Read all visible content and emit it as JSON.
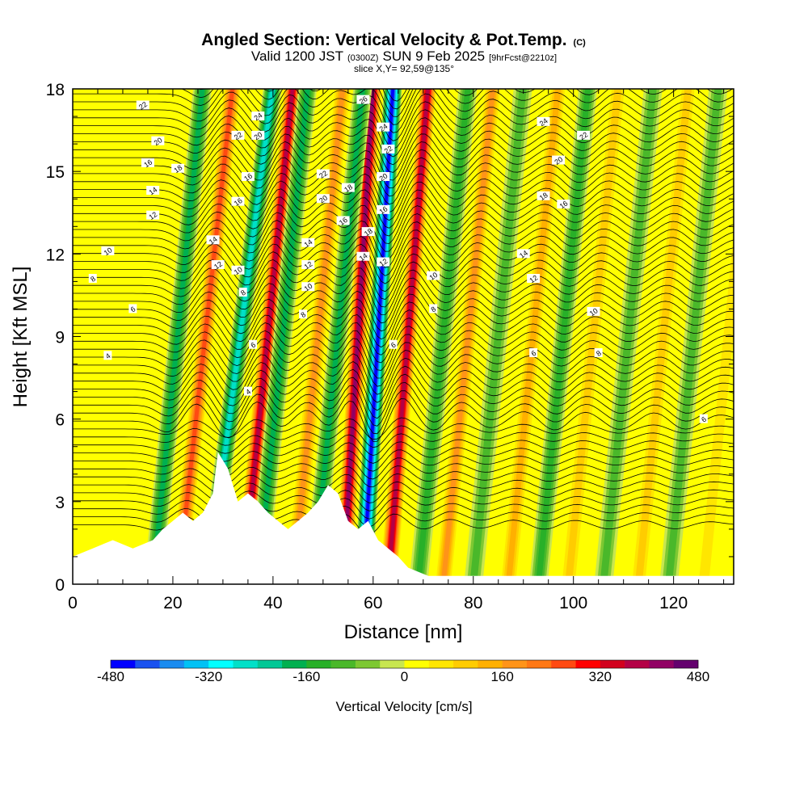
{
  "header": {
    "title_main": "Angled Section: Vertical Velocity & Pot.Temp.",
    "title_mark": "(C)",
    "subtitle_a": "Valid 1200 JST",
    "subtitle_b": "(0300Z)",
    "subtitle_c": "SUN 9 Feb 2025",
    "subtitle_d": "[9hrFcst@2210z]",
    "slice": "slice X,Y= 92,59@135°"
  },
  "chart_data": {
    "type": "heatmap",
    "xlabel": "Distance [nm]",
    "ylabel": "Height [Kft MSL]",
    "xlim": [
      0,
      132
    ],
    "ylim": [
      0,
      18
    ],
    "xticks": [
      0,
      20,
      40,
      60,
      80,
      100,
      120
    ],
    "yticks": [
      0,
      3,
      6,
      9,
      12,
      15,
      18
    ],
    "colorbar": {
      "label": "Vertical Velocity [cm/s]",
      "min": -480,
      "max": 480,
      "step": 40,
      "ticks": [
        -480,
        -320,
        -160,
        0,
        160,
        320,
        480
      ],
      "colors": [
        "#0000ff",
        "#1a52f0",
        "#1a8cf0",
        "#00c2f5",
        "#00ffff",
        "#00e0c8",
        "#00c896",
        "#00b050",
        "#28b028",
        "#4ab82a",
        "#7dc832",
        "#c8e650",
        "#ffff00",
        "#ffe600",
        "#ffcc00",
        "#ffb000",
        "#ff9418",
        "#ff7814",
        "#ff4a12",
        "#ff0000",
        "#d2001e",
        "#b40046",
        "#910064",
        "#64006e"
      ]
    },
    "updraft_bands": [
      {
        "x": 21,
        "w": 300,
        "slope": 1.1
      },
      {
        "x": 34,
        "w": 420,
        "slope": 1.0
      },
      {
        "x": 44,
        "w": 220,
        "slope": 1.0
      },
      {
        "x": 54,
        "w": 470,
        "slope": 0.6
      },
      {
        "x": 63,
        "w": 400,
        "slope": 0.8
      },
      {
        "x": 74,
        "w": 200,
        "slope": 1.0
      },
      {
        "x": 87,
        "w": 160,
        "slope": 1.0
      },
      {
        "x": 99,
        "w": 150,
        "slope": 1.0
      },
      {
        "x": 113,
        "w": 140,
        "slope": 1.0
      },
      {
        "x": 126,
        "w": 100,
        "slope": 1.0
      }
    ],
    "downdraft_bands": [
      {
        "x": 16,
        "w": -200,
        "slope": 1.0
      },
      {
        "x": 27,
        "w": -300,
        "slope": 1.3
      },
      {
        "x": 37,
        "w": -220,
        "slope": 1.0
      },
      {
        "x": 48,
        "w": -200,
        "slope": 1.0
      },
      {
        "x": 58,
        "w": -480,
        "slope": 0.6
      },
      {
        "x": 69,
        "w": -180,
        "slope": 1.0
      },
      {
        "x": 80,
        "w": -120,
        "slope": 1.0
      },
      {
        "x": 93,
        "w": -160,
        "slope": 1.0
      },
      {
        "x": 106,
        "w": -140,
        "slope": 1.0
      },
      {
        "x": 119,
        "w": -140,
        "slope": 1.0
      }
    ],
    "terrain": {
      "distance": [
        0,
        4,
        8,
        12,
        16,
        18,
        20,
        22,
        24,
        26,
        28,
        29,
        31,
        33,
        35,
        37,
        39,
        41,
        43,
        45,
        47,
        49,
        51,
        53,
        55,
        57,
        59,
        61,
        63,
        65,
        67,
        71,
        132
      ],
      "height": [
        1.0,
        1.3,
        1.6,
        1.3,
        1.6,
        2.0,
        2.3,
        2.6,
        2.3,
        2.6,
        3.3,
        4.8,
        4.2,
        3.0,
        3.3,
        3.0,
        2.6,
        2.3,
        2.0,
        2.3,
        2.6,
        3.0,
        3.6,
        3.3,
        2.3,
        2.0,
        2.3,
        1.6,
        1.3,
        1.0,
        0.6,
        0.3,
        0.3
      ]
    },
    "theta_levels": [
      4,
      6,
      8,
      10,
      12,
      14,
      16,
      18,
      20,
      22,
      24,
      26
    ],
    "theta_labels": [
      {
        "text": "22",
        "x": 14,
        "y": 17.4
      },
      {
        "text": "20",
        "x": 17,
        "y": 16.1
      },
      {
        "text": "16",
        "x": 15,
        "y": 15.3
      },
      {
        "text": "18",
        "x": 21,
        "y": 15.1
      },
      {
        "text": "14",
        "x": 16,
        "y": 14.3
      },
      {
        "text": "12",
        "x": 16,
        "y": 13.4
      },
      {
        "text": "10",
        "x": 7,
        "y": 12.1
      },
      {
        "text": "8",
        "x": 4,
        "y": 11.1
      },
      {
        "text": "6",
        "x": 12,
        "y": 10.0
      },
      {
        "text": "4",
        "x": 7,
        "y": 8.3
      },
      {
        "text": "24",
        "x": 37,
        "y": 17.0
      },
      {
        "text": "22",
        "x": 33,
        "y": 16.3
      },
      {
        "text": "20",
        "x": 37,
        "y": 16.3
      },
      {
        "text": "16",
        "x": 35,
        "y": 14.8
      },
      {
        "text": "16",
        "x": 33,
        "y": 13.9
      },
      {
        "text": "14",
        "x": 28,
        "y": 12.5
      },
      {
        "text": "12",
        "x": 29,
        "y": 11.6
      },
      {
        "text": "10",
        "x": 33,
        "y": 11.4
      },
      {
        "text": "8",
        "x": 34,
        "y": 10.6
      },
      {
        "text": "6",
        "x": 36,
        "y": 8.7
      },
      {
        "text": "4",
        "x": 35,
        "y": 7.0
      },
      {
        "text": "22",
        "x": 50,
        "y": 14.9
      },
      {
        "text": "20",
        "x": 50,
        "y": 14.0
      },
      {
        "text": "14",
        "x": 47,
        "y": 12.4
      },
      {
        "text": "12",
        "x": 47,
        "y": 11.6
      },
      {
        "text": "10",
        "x": 47,
        "y": 10.8
      },
      {
        "text": "8",
        "x": 46,
        "y": 9.8
      },
      {
        "text": "26",
        "x": 58,
        "y": 17.6
      },
      {
        "text": "24",
        "x": 62,
        "y": 16.6
      },
      {
        "text": "22",
        "x": 63,
        "y": 15.8
      },
      {
        "text": "20",
        "x": 62,
        "y": 14.8
      },
      {
        "text": "18",
        "x": 55,
        "y": 14.4
      },
      {
        "text": "16",
        "x": 54,
        "y": 13.2
      },
      {
        "text": "18",
        "x": 59,
        "y": 12.8
      },
      {
        "text": "16",
        "x": 62,
        "y": 13.6
      },
      {
        "text": "14",
        "x": 58,
        "y": 11.9
      },
      {
        "text": "12",
        "x": 62,
        "y": 11.7
      },
      {
        "text": "6",
        "x": 64,
        "y": 8.7
      },
      {
        "text": "10",
        "x": 72,
        "y": 11.2
      },
      {
        "text": "8",
        "x": 72,
        "y": 10.0
      },
      {
        "text": "24",
        "x": 94,
        "y": 16.8
      },
      {
        "text": "22",
        "x": 102,
        "y": 16.3
      },
      {
        "text": "20",
        "x": 97,
        "y": 15.4
      },
      {
        "text": "18",
        "x": 94,
        "y": 14.1
      },
      {
        "text": "16",
        "x": 98,
        "y": 13.8
      },
      {
        "text": "14",
        "x": 90,
        "y": 12.0
      },
      {
        "text": "12",
        "x": 92,
        "y": 11.1
      },
      {
        "text": "10",
        "x": 104,
        "y": 9.9
      },
      {
        "text": "8",
        "x": 105,
        "y": 8.4
      },
      {
        "text": "6",
        "x": 92,
        "y": 8.4
      },
      {
        "text": "6",
        "x": 126,
        "y": 6.0
      }
    ]
  }
}
